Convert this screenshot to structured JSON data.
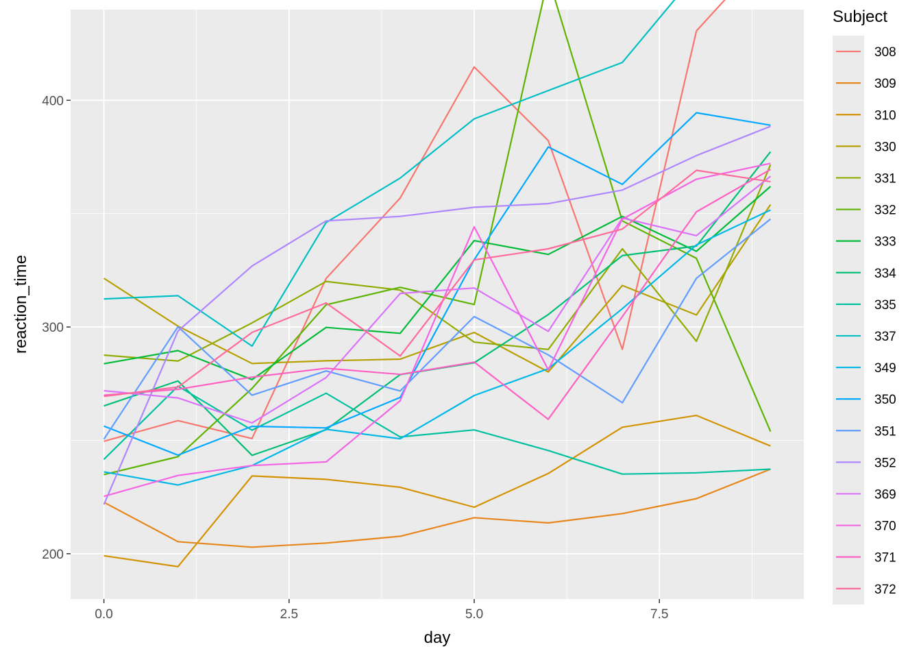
{
  "chart_data": {
    "type": "line",
    "title": "",
    "xlabel": "day",
    "ylabel": "reaction_time",
    "xlim": [
      -0.45,
      9.45
    ],
    "ylim": [
      180,
      440
    ],
    "x_ticks": [
      0.0,
      2.5,
      5.0,
      7.5
    ],
    "x_tick_labels": [
      "0.0",
      "2.5",
      "5.0",
      "7.5"
    ],
    "y_ticks": [
      200,
      300,
      400
    ],
    "y_tick_labels": [
      "200",
      "300",
      "400"
    ],
    "grid": true,
    "legend_title": "Subject",
    "legend_position": "right",
    "x": [
      0,
      1,
      2,
      3,
      4,
      5,
      6,
      7,
      8,
      9
    ],
    "series": [
      {
        "name": "308",
        "color": "#F8766D",
        "values": [
          249.6,
          258.7,
          250.8,
          321.4,
          356.9,
          414.7,
          382.2,
          290.1,
          430.6,
          466.4
        ]
      },
      {
        "name": "309",
        "color": "#E7861B",
        "values": [
          222.7,
          205.3,
          202.9,
          204.7,
          207.7,
          215.9,
          213.6,
          217.7,
          224.3,
          237.3
        ]
      },
      {
        "name": "310",
        "color": "#D39200",
        "values": [
          199.1,
          194.3,
          234.3,
          232.8,
          229.3,
          220.5,
          235.4,
          255.8,
          261.0,
          247.5
        ]
      },
      {
        "name": "330",
        "color": "#B79F00",
        "values": [
          321.5,
          300.4,
          283.9,
          285.1,
          285.8,
          297.6,
          280.2,
          318.3,
          305.3,
          354.0
        ]
      },
      {
        "name": "331",
        "color": "#93AA00",
        "values": [
          287.6,
          285.0,
          301.8,
          320.1,
          316.3,
          293.3,
          290.1,
          334.5,
          293.7,
          371.6
        ]
      },
      {
        "name": "332",
        "color": "#5EB300",
        "values": [
          234.9,
          242.8,
          272.9,
          309.8,
          317.5,
          309.9,
          454.2,
          346.8,
          330.3,
          253.9
        ]
      },
      {
        "name": "333",
        "color": "#00BA38",
        "values": [
          283.8,
          289.6,
          276.8,
          299.8,
          297.2,
          338.1,
          332.0,
          348.8,
          333.4,
          362.0
        ]
      },
      {
        "name": "334",
        "color": "#00BF74",
        "values": [
          265.2,
          276.2,
          243.4,
          254.7,
          279.0,
          284.2,
          305.5,
          331.5,
          335.7,
          377.3
        ]
      },
      {
        "name": "335",
        "color": "#00C19F",
        "values": [
          241.6,
          273.9,
          254.5,
          270.8,
          251.5,
          254.6,
          245.5,
          235.1,
          235.7,
          237.3
        ]
      },
      {
        "name": "337",
        "color": "#00BFC4",
        "values": [
          312.4,
          313.8,
          291.6,
          346.1,
          365.7,
          391.8,
          404.3,
          416.7,
          455.9,
          458.9
        ]
      },
      {
        "name": "349",
        "color": "#00B8E7",
        "values": [
          236.1,
          230.3,
          238.9,
          254.9,
          250.7,
          269.8,
          281.6,
          308.1,
          336.2,
          351.6
        ]
      },
      {
        "name": "350",
        "color": "#00A9FF",
        "values": [
          256.3,
          243.5,
          256.2,
          255.5,
          268.9,
          329.7,
          379.4,
          362.9,
          394.5,
          389.0
        ]
      },
      {
        "name": "351",
        "color": "#619CFF",
        "values": [
          250.5,
          300.1,
          269.9,
          280.6,
          271.8,
          304.6,
          287.7,
          266.6,
          321.5,
          347.6
        ]
      },
      {
        "name": "352",
        "color": "#AE87FF",
        "values": [
          221.7,
          298.2,
          326.9,
          346.8,
          348.8,
          352.8,
          354.4,
          360.4,
          375.6,
          388.5
        ]
      },
      {
        "name": "369",
        "color": "#DB72FB",
        "values": [
          271.9,
          268.7,
          257.7,
          277.7,
          314.8,
          317.2,
          298.1,
          348.1,
          340.3,
          366.5
        ]
      },
      {
        "name": "370",
        "color": "#F564E3",
        "values": [
          225.3,
          234.5,
          238.9,
          240.5,
          267.5,
          344.2,
          281.1,
          347.6,
          365.2,
          372.2
        ]
      },
      {
        "name": "371",
        "color": "#FF61C3",
        "values": [
          269.9,
          272.5,
          277.9,
          281.8,
          279.1,
          284.5,
          259.3,
          304.6,
          350.8,
          369.5
        ]
      },
      {
        "name": "372",
        "color": "#FF699C",
        "values": [
          269.4,
          273.5,
          297.6,
          310.6,
          287.2,
          329.6,
          334.5,
          343.2,
          369.1,
          364.1
        ]
      }
    ]
  }
}
